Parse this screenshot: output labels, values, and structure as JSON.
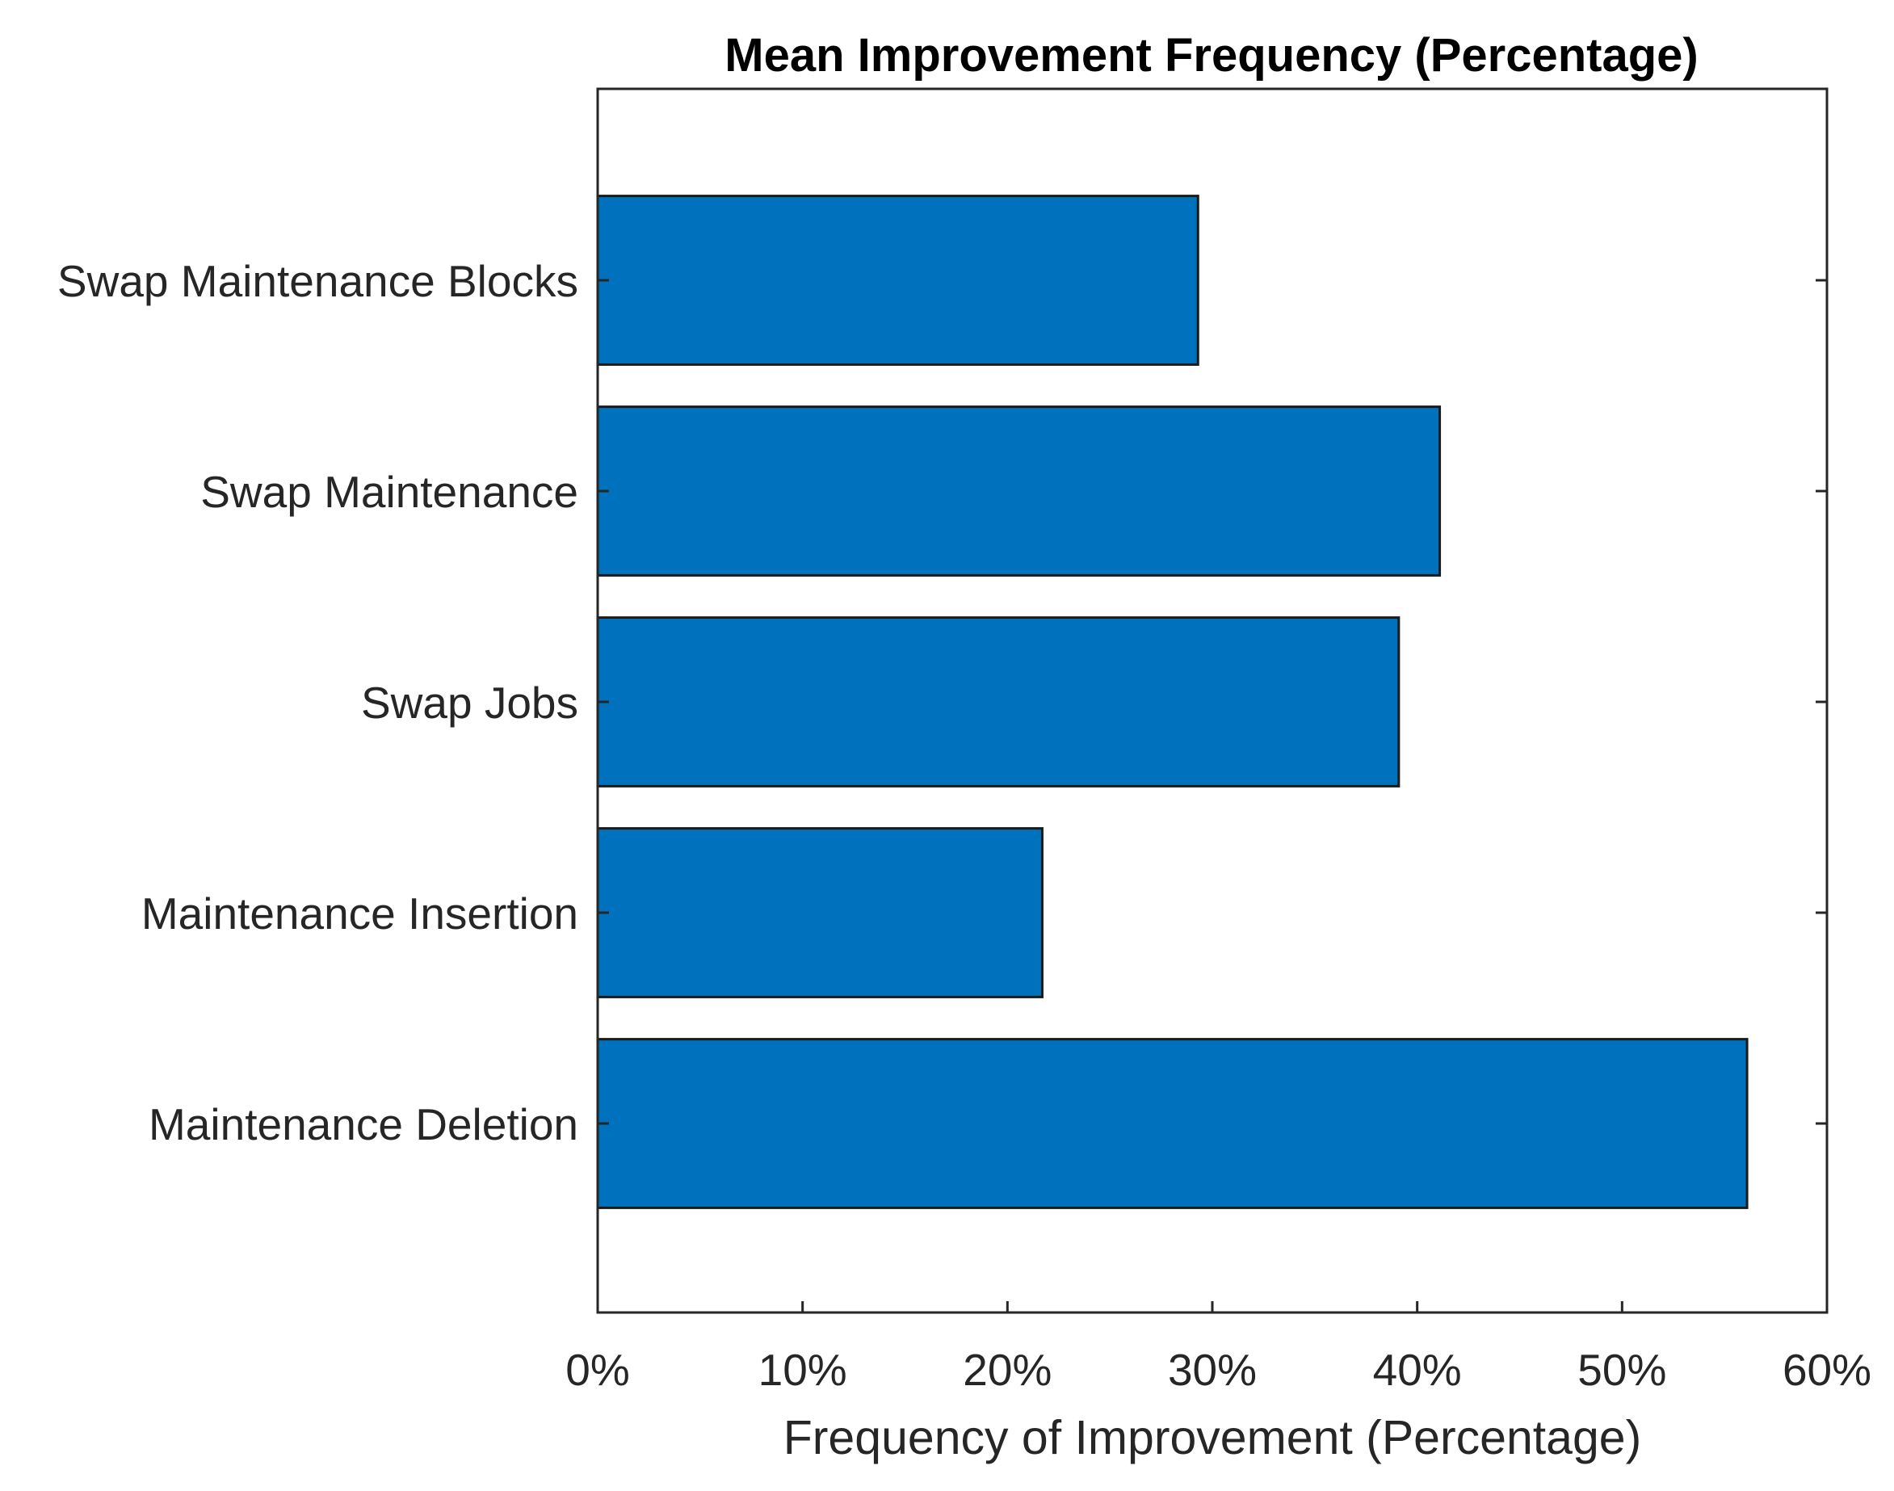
{
  "chart_data": {
    "type": "bar",
    "orientation": "horizontal",
    "title": "Mean Improvement Frequency (Percentage)",
    "xlabel": "Frequency of Improvement (Percentage)",
    "ylabel": "",
    "categories": [
      "Swap Maintenance Blocks",
      "Swap Maintenance",
      "Swap Jobs",
      "Maintenance Insertion",
      "Maintenance Deletion"
    ],
    "values": [
      29.3,
      41.1,
      39.1,
      21.7,
      56.1
    ],
    "xlim": [
      0,
      60
    ],
    "xticks": [
      0,
      10,
      20,
      30,
      40,
      50,
      60
    ],
    "xtick_labels": [
      "0%",
      "10%",
      "20%",
      "30%",
      "40%",
      "50%",
      "60%"
    ],
    "grid": false,
    "bar_color": "#0072BD",
    "edge_color": "#1a1a1a"
  }
}
